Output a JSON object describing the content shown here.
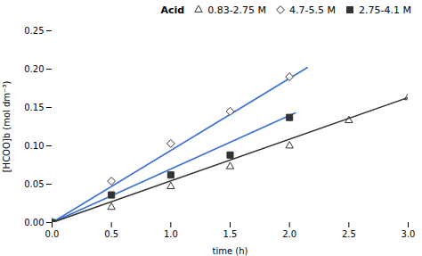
{
  "chart_data": {
    "type": "scatter",
    "xlabel": "time (h)",
    "ylabel": "[HCOO]b (mol dm⁻³)",
    "xlim": [
      0,
      3.0
    ],
    "ylim": [
      0.0,
      0.25
    ],
    "xticks": [
      {
        "value": 0,
        "label": "0.0"
      },
      {
        "value": 0.5,
        "label": "0.5"
      },
      {
        "value": 1.0,
        "label": "1.0"
      },
      {
        "value": 1.5,
        "label": "1.5"
      },
      {
        "value": 2.0,
        "label": "2.0"
      },
      {
        "value": 2.5,
        "label": "2.5"
      },
      {
        "value": 3.0,
        "label": "3.0"
      }
    ],
    "yticks": [
      {
        "value": 0.0,
        "label": "0.00"
      },
      {
        "value": 0.05,
        "label": "0.05"
      },
      {
        "value": 0.1,
        "label": "0.10"
      },
      {
        "value": 0.15,
        "label": "0.15"
      },
      {
        "value": 0.2,
        "label": "0.20"
      },
      {
        "value": 0.25,
        "label": "0.25"
      }
    ],
    "grid": false,
    "legend": "upper right",
    "legend_title": "Acid",
    "series": [
      {
        "name": "0.83-2.75 M",
        "marker": "triangle-open",
        "color": "#333333",
        "x": [
          0,
          0.5,
          1.0,
          1.5,
          2.0,
          2.5,
          3.0
        ],
        "values": [
          0.0,
          0.02,
          0.047,
          0.073,
          0.1,
          0.133,
          0.163
        ]
      },
      {
        "name": "4.7-5.5 M",
        "marker": "diamond-open",
        "color": "#333333",
        "x": [
          0,
          0.5,
          1.0,
          1.5,
          2.0
        ],
        "values": [
          0.0,
          0.054,
          0.103,
          0.145,
          0.19
        ]
      },
      {
        "name": "2.75-4.1 M",
        "marker": "square",
        "color": "#333333",
        "x": [
          0,
          0.5,
          1.0,
          1.5,
          2.0
        ],
        "values": [
          0.0,
          0.036,
          0.062,
          0.088,
          0.137
        ]
      }
    ],
    "lines": [
      {
        "type": "line",
        "color": "#3a6fd8",
        "x": [
          0,
          2.15
        ],
        "values": [
          0.0,
          0.202
        ]
      },
      {
        "type": "line",
        "color": "#3a6fd8",
        "x": [
          0,
          2.05
        ],
        "values": [
          0.0,
          0.143
        ]
      },
      {
        "type": "line",
        "color": "#333333",
        "x": [
          0,
          3.0
        ],
        "values": [
          0.0,
          0.163
        ]
      }
    ]
  }
}
